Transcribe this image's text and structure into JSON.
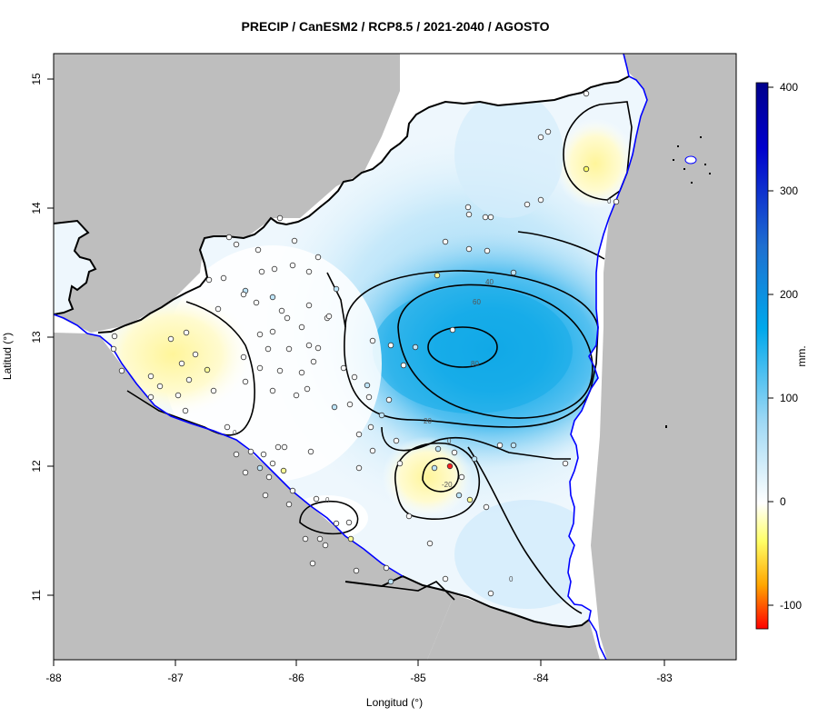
{
  "title": "PRECIP / CanESM2 / RCP8.5 / 2021-2040 / AGOSTO",
  "xlabel": "Longitud (°)",
  "ylabel": "Latitud (°)",
  "colorbar": {
    "unit": "mm.",
    "ticks": [
      "400",
      "300",
      "200",
      "100",
      "0",
      "-100"
    ]
  },
  "chart_data": {
    "type": "heatmap",
    "title": "PRECIP / CanESM2 / RCP8.5 / 2021-2040 / AGOSTO",
    "xlabel": "Longitud (°)",
    "ylabel": "Latitud (°)",
    "xlim": [
      -88,
      -82.4
    ],
    "ylim": [
      10.5,
      15.2
    ],
    "x_ticks": [
      "-88",
      "-87",
      "-86",
      "-85",
      "-84",
      "-83"
    ],
    "y_ticks": [
      "15",
      "14",
      "13",
      "12",
      "11"
    ],
    "colorbar_range": [
      -120,
      405
    ],
    "colorbar_unit": "mm.",
    "contour_labels": [
      "60",
      "40",
      "20",
      "0",
      "-20",
      "0",
      "0",
      "0",
      "0",
      "80"
    ],
    "colors": {
      "land_outside": "#bebebe",
      "border": "#000000",
      "coast": "#0000ff",
      "high": "#00008b",
      "mid": "#00a8ec",
      "zero": "#ffffff",
      "low": "#ffff00",
      "min": "#ff0000"
    }
  }
}
